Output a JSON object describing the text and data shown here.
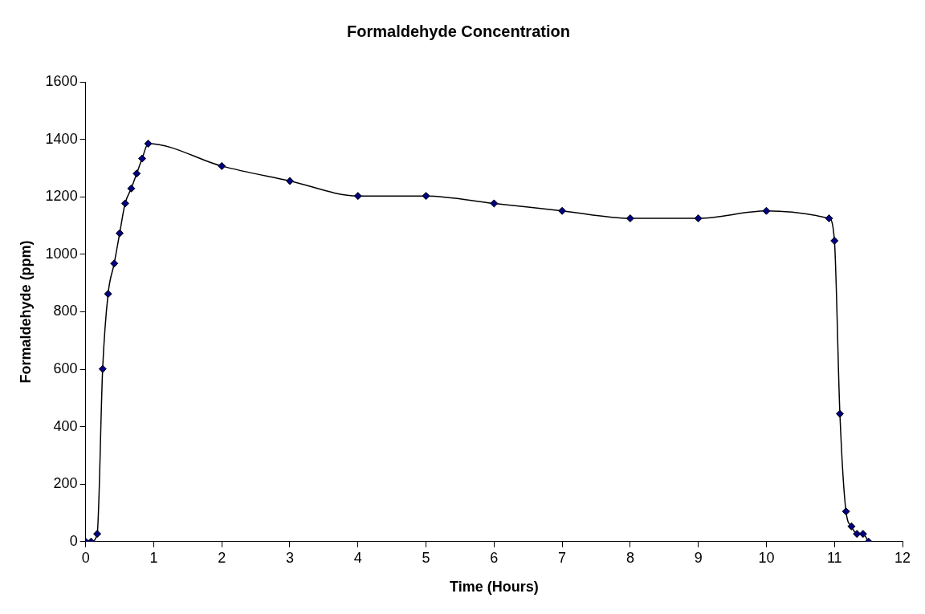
{
  "chart_data": {
    "type": "line",
    "title": "Formaldehyde Concentration",
    "xlabel": "Time (Hours)",
    "ylabel": "Formaldehyde (ppm)",
    "xlim": [
      0,
      12
    ],
    "xticks": [
      0,
      1,
      2,
      3,
      4,
      5,
      6,
      7,
      8,
      9,
      10,
      11,
      12
    ],
    "ylim": [
      0,
      1600
    ],
    "yticks": [
      0,
      200,
      400,
      600,
      800,
      1000,
      1200,
      1400,
      1600
    ],
    "grid": false,
    "legend": false,
    "marker": "diamond",
    "line_style": "solid",
    "series": [
      {
        "color": "#000080",
        "x": [
          0,
          0.08,
          0.17,
          0.25,
          0.33,
          0.42,
          0.5,
          0.58,
          0.67,
          0.75,
          0.83,
          0.92,
          2,
          3,
          4,
          5,
          6,
          7,
          8,
          9,
          10,
          10.92,
          11,
          11.08,
          11.17,
          11.25,
          11.33,
          11.42,
          11.5
        ],
        "values": [
          0,
          0,
          27,
          601,
          862,
          968,
          1073,
          1177,
          1229,
          1281,
          1333,
          1385,
          1307,
          1255,
          1203,
          1203,
          1177,
          1151,
          1125,
          1125,
          1151,
          1125,
          1047,
          445,
          105,
          53,
          27,
          27,
          0
        ]
      }
    ]
  }
}
